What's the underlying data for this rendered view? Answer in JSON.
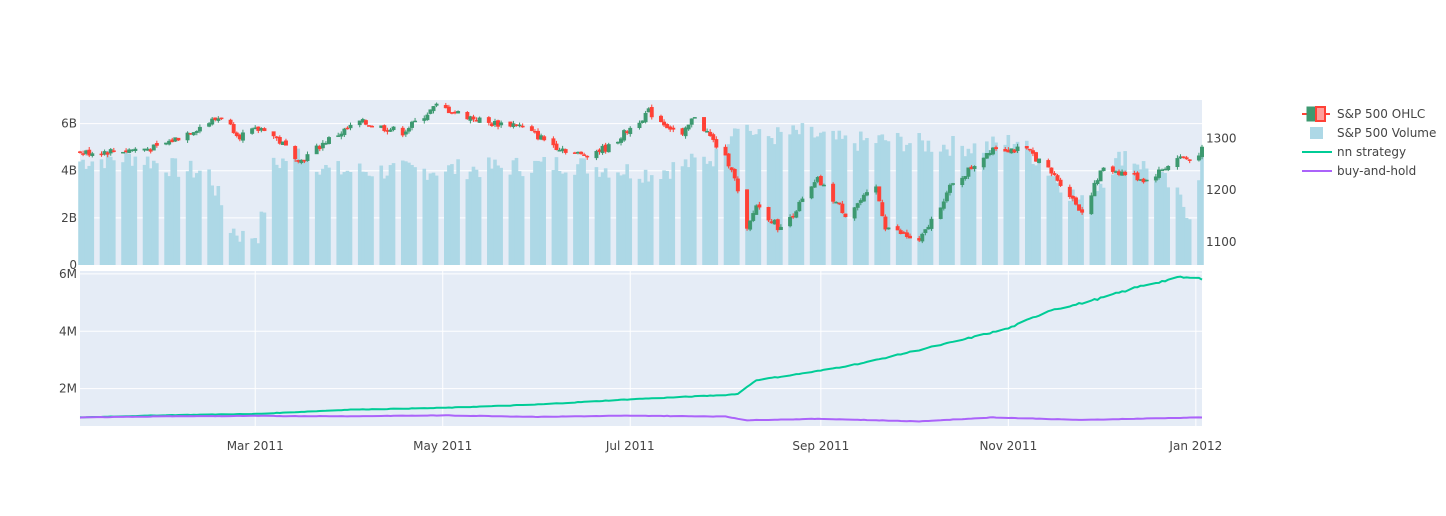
{
  "colors": {
    "plot_bg": "#e5ecf6",
    "grid": "#ffffff",
    "increasing": "#3d9970",
    "decreasing": "#ff4136",
    "volume": "#add8e6",
    "nn_strategy": "#00cc96",
    "buy_and_hold": "#ab63fa"
  },
  "chart_data": [
    {
      "type": "candlestick+bar",
      "title": "",
      "x_range": [
        "2011-01-03",
        "2012-01-03"
      ],
      "x_ticks": [
        {
          "date": "2011-03-01",
          "label": "Mar 2011"
        },
        {
          "date": "2011-05-01",
          "label": "May 2011"
        },
        {
          "date": "2011-07-01",
          "label": "Jul 2011"
        },
        {
          "date": "2011-09-01",
          "label": "Sep 2011"
        },
        {
          "date": "2011-11-01",
          "label": "Nov 2011"
        },
        {
          "date": "2012-01-01",
          "label": "Jan 2012"
        }
      ],
      "y_left": {
        "name": "volume",
        "range": [
          0,
          7000000000
        ],
        "ticks": [
          {
            "value": 0,
            "label": "0"
          },
          {
            "value": 2000000000,
            "label": "2B"
          },
          {
            "value": 4000000000,
            "label": "4B"
          },
          {
            "value": 6000000000,
            "label": "6B"
          }
        ]
      },
      "y_right": {
        "name": "price",
        "range": [
          1055,
          1375
        ],
        "ticks": [
          {
            "value": 1100,
            "label": "1100"
          },
          {
            "value": 1200,
            "label": "1200"
          },
          {
            "value": 1300,
            "label": "1300"
          }
        ]
      },
      "series": [
        {
          "name": "S&P 500 OHLC",
          "type": "candlestick",
          "close_anchors": [
            [
              "2011-01-03",
              1272
            ],
            [
              "2011-01-14",
              1276
            ],
            [
              "2011-01-28",
              1282
            ],
            [
              "2011-02-10",
              1320
            ],
            [
              "2011-02-18",
              1343
            ],
            [
              "2011-02-24",
              1306
            ],
            [
              "2011-03-04",
              1321
            ],
            [
              "2011-03-16",
              1257
            ],
            [
              "2011-03-24",
              1295
            ],
            [
              "2011-04-04",
              1332
            ],
            [
              "2011-04-18",
              1313
            ],
            [
              "2011-04-29",
              1363
            ],
            [
              "2011-05-16",
              1330
            ],
            [
              "2011-05-25",
              1328
            ],
            [
              "2011-06-07",
              1285
            ],
            [
              "2011-06-15",
              1268
            ],
            [
              "2011-06-24",
              1283
            ],
            [
              "2011-07-07",
              1352
            ],
            [
              "2011-07-18",
              1304
            ],
            [
              "2011-07-22",
              1345
            ],
            [
              "2011-08-03",
              1245
            ],
            [
              "2011-08-08",
              1120
            ],
            [
              "2011-08-11",
              1172
            ],
            [
              "2011-08-19",
              1124
            ],
            [
              "2011-08-31",
              1219
            ],
            [
              "2011-09-09",
              1154
            ],
            [
              "2011-09-19",
              1204
            ],
            [
              "2011-09-22",
              1130
            ],
            [
              "2011-10-03",
              1099
            ],
            [
              "2011-10-13",
              1204
            ],
            [
              "2011-10-27",
              1284
            ],
            [
              "2011-11-08",
              1275
            ],
            [
              "2011-11-18",
              1215
            ],
            [
              "2011-11-25",
              1158
            ],
            [
              "2011-12-02",
              1245
            ],
            [
              "2011-12-16",
              1219
            ],
            [
              "2011-12-27",
              1265
            ],
            [
              "2011-12-30",
              1258
            ],
            [
              "2012-01-03",
              1277
            ]
          ]
        },
        {
          "name": "S&P 500 Volume",
          "type": "bar",
          "volume_anchors": [
            [
              "2011-01-03",
              4.4
            ],
            [
              "2011-01-21",
              4.6
            ],
            [
              "2011-02-03",
              4.1
            ],
            [
              "2011-02-14",
              3.9
            ],
            [
              "2011-02-21",
              1.6
            ],
            [
              "2011-02-25",
              1.2
            ],
            [
              "2011-03-02",
              1.3
            ],
            [
              "2011-03-07",
              4.2
            ],
            [
              "2011-03-15",
              4.8
            ],
            [
              "2011-03-25",
              4.0
            ],
            [
              "2011-04-15",
              4.0
            ],
            [
              "2011-05-13",
              4.1
            ],
            [
              "2011-06-10",
              4.3
            ],
            [
              "2011-07-08",
              3.9
            ],
            [
              "2011-07-29",
              4.6
            ],
            [
              "2011-08-05",
              6.2
            ],
            [
              "2011-08-12",
              5.4
            ],
            [
              "2011-08-26",
              5.6
            ],
            [
              "2011-09-09",
              5.2
            ],
            [
              "2011-09-23",
              5.3
            ],
            [
              "2011-10-07",
              5.1
            ],
            [
              "2011-10-24",
              5.0
            ],
            [
              "2011-11-04",
              5.3
            ],
            [
              "2011-11-25",
              2.6
            ],
            [
              "2011-12-09",
              4.8
            ],
            [
              "2011-12-23",
              3.4
            ],
            [
              "2011-12-30",
              2.2
            ],
            [
              "2012-01-03",
              4.5
            ]
          ]
        }
      ]
    },
    {
      "type": "line",
      "title": "",
      "x_range": [
        "2011-01-03",
        "2012-01-03"
      ],
      "y_range": [
        700000,
        6100000
      ],
      "y_ticks": [
        {
          "value": 2000000,
          "label": "2M"
        },
        {
          "value": 4000000,
          "label": "4M"
        },
        {
          "value": 6000000,
          "label": "6M"
        }
      ],
      "series": [
        {
          "name": "nn strategy",
          "points": [
            [
              "2011-01-03",
              1000000
            ],
            [
              "2011-02-01",
              1080000
            ],
            [
              "2011-03-01",
              1120000
            ],
            [
              "2011-04-01",
              1270000
            ],
            [
              "2011-05-01",
              1330000
            ],
            [
              "2011-06-01",
              1450000
            ],
            [
              "2011-07-01",
              1630000
            ],
            [
              "2011-08-01",
              1780000
            ],
            [
              "2011-08-05",
              1820000
            ],
            [
              "2011-08-11",
              2300000
            ],
            [
              "2011-08-19",
              2420000
            ],
            [
              "2011-09-01",
              2630000
            ],
            [
              "2011-09-15",
              2900000
            ],
            [
              "2011-10-01",
              3300000
            ],
            [
              "2011-10-15",
              3650000
            ],
            [
              "2011-11-01",
              4100000
            ],
            [
              "2011-11-15",
              4750000
            ],
            [
              "2011-11-22",
              4900000
            ],
            [
              "2011-12-01",
              5150000
            ],
            [
              "2011-12-15",
              5600000
            ],
            [
              "2011-12-27",
              5880000
            ],
            [
              "2012-01-03",
              5830000
            ]
          ]
        },
        {
          "name": "buy-and-hold",
          "points": [
            [
              "2011-01-03",
              1000000
            ],
            [
              "2011-02-01",
              1040000
            ],
            [
              "2011-03-01",
              1050000
            ],
            [
              "2011-04-01",
              1040000
            ],
            [
              "2011-05-01",
              1070000
            ],
            [
              "2011-06-01",
              1020000
            ],
            [
              "2011-07-01",
              1060000
            ],
            [
              "2011-08-01",
              1030000
            ],
            [
              "2011-08-08",
              900000
            ],
            [
              "2011-09-01",
              950000
            ],
            [
              "2011-10-03",
              860000
            ],
            [
              "2011-10-27",
              1000000
            ],
            [
              "2011-11-25",
              910000
            ],
            [
              "2011-12-15",
              960000
            ],
            [
              "2012-01-03",
              1000000
            ]
          ]
        }
      ]
    }
  ],
  "legend": {
    "placement": "right",
    "items": [
      {
        "label": "S&P 500 OHLC",
        "kind": "candle"
      },
      {
        "label": "S&P 500 Volume",
        "kind": "bar"
      },
      {
        "label": "nn strategy",
        "kind": "line-green"
      },
      {
        "label": "buy-and-hold",
        "kind": "line-purple"
      }
    ]
  }
}
